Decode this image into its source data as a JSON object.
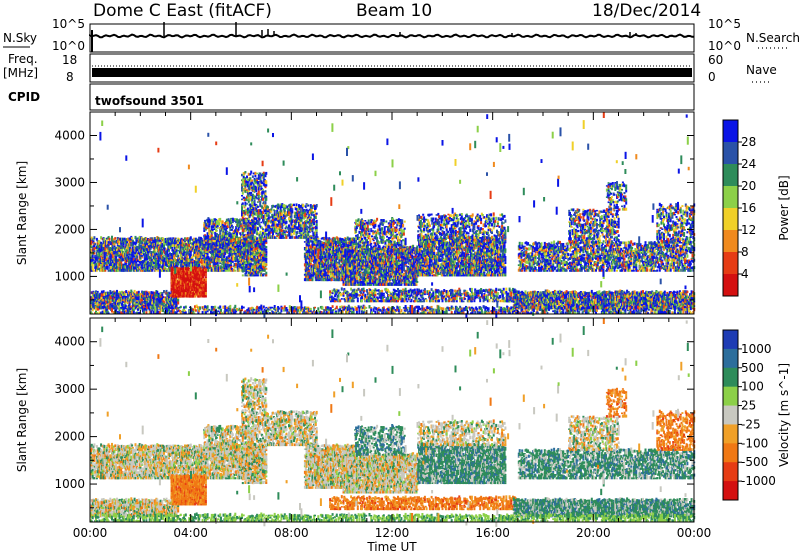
{
  "header": {
    "station": "Dome C East (fitACF)",
    "beam": "Beam 10",
    "date": "18/Dec/2014"
  },
  "noise_panel": {
    "left_label": "N.Sky",
    "right_label": "N.Search",
    "left_ticks": [
      "10^5",
      "10^0"
    ],
    "right_ticks": [
      "10^5",
      "10^0"
    ]
  },
  "freq_panel": {
    "label_line1": "Freq.",
    "label_line2": "[MHz]",
    "left_ticks": [
      "18",
      "8"
    ],
    "right_label": "Nave",
    "right_ticks": [
      "60",
      "0"
    ]
  },
  "cpid_panel": {
    "label": "CPID",
    "program": "twofsound 3501"
  },
  "chart_data": [
    {
      "type": "heatmap",
      "ylabel": "Slant Range [km]",
      "yticks": [
        "1000",
        "2000",
        "3000",
        "4000"
      ],
      "ylim": [
        200,
        4500
      ],
      "colorbar": {
        "label": "Power [dB]",
        "ticks": [
          "4",
          "8",
          "12",
          "16",
          "20",
          "24",
          "28"
        ],
        "colors": [
          "#0a14e6",
          "#2a52a8",
          "#2e8c5a",
          "#8cd048",
          "#f0d028",
          "#f08a1e",
          "#e63c14",
          "#d41010"
        ]
      }
    },
    {
      "type": "heatmap",
      "ylabel": "Slant Range [km]",
      "yticks": [
        "1000",
        "2000",
        "3000",
        "4000"
      ],
      "ylim": [
        200,
        4500
      ],
      "colorbar": {
        "label": "Velocity [m s^-1]",
        "ticks": [
          "1000",
          "500",
          "100",
          "25",
          "-25",
          "-100",
          "-500",
          "-1000"
        ],
        "colors": [
          "#1e3cb4",
          "#2c6e9c",
          "#2e8c5a",
          "#8cd048",
          "#c8c8c0",
          "#f0a028",
          "#f07814",
          "#e63c14",
          "#d41010"
        ]
      },
      "xlabel": "Time UT",
      "xticks": [
        "00:00",
        "04:00",
        "08:00",
        "12:00",
        "16:00",
        "20:00",
        "00:00"
      ]
    }
  ]
}
